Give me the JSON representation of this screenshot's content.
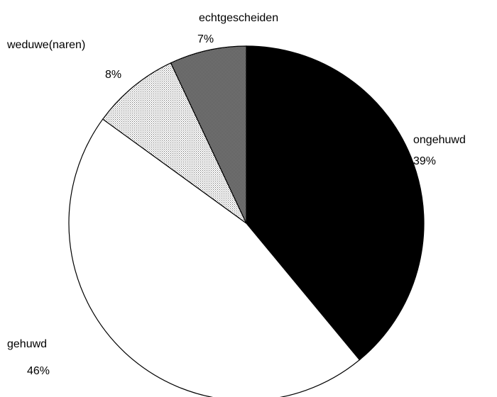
{
  "chart_data": {
    "type": "pie",
    "start_angle_deg": 0,
    "direction": "clockwise",
    "slices": [
      {
        "label": "ongehuwd",
        "value": 39,
        "value_label": "39%",
        "fill": "#000000",
        "pattern": "solid"
      },
      {
        "label": "gehuwd",
        "value": 46,
        "value_label": "46%",
        "fill": "#ffffff",
        "pattern": "solid"
      },
      {
        "label": "weduwe(naren)",
        "value": 8,
        "value_label": "8%",
        "fill": "#dcdcdc",
        "pattern": "dots-light"
      },
      {
        "label": "echtgescheiden",
        "value": 7,
        "value_label": "7%",
        "fill": "#9a9a9a",
        "pattern": "dots-dark"
      }
    ]
  }
}
